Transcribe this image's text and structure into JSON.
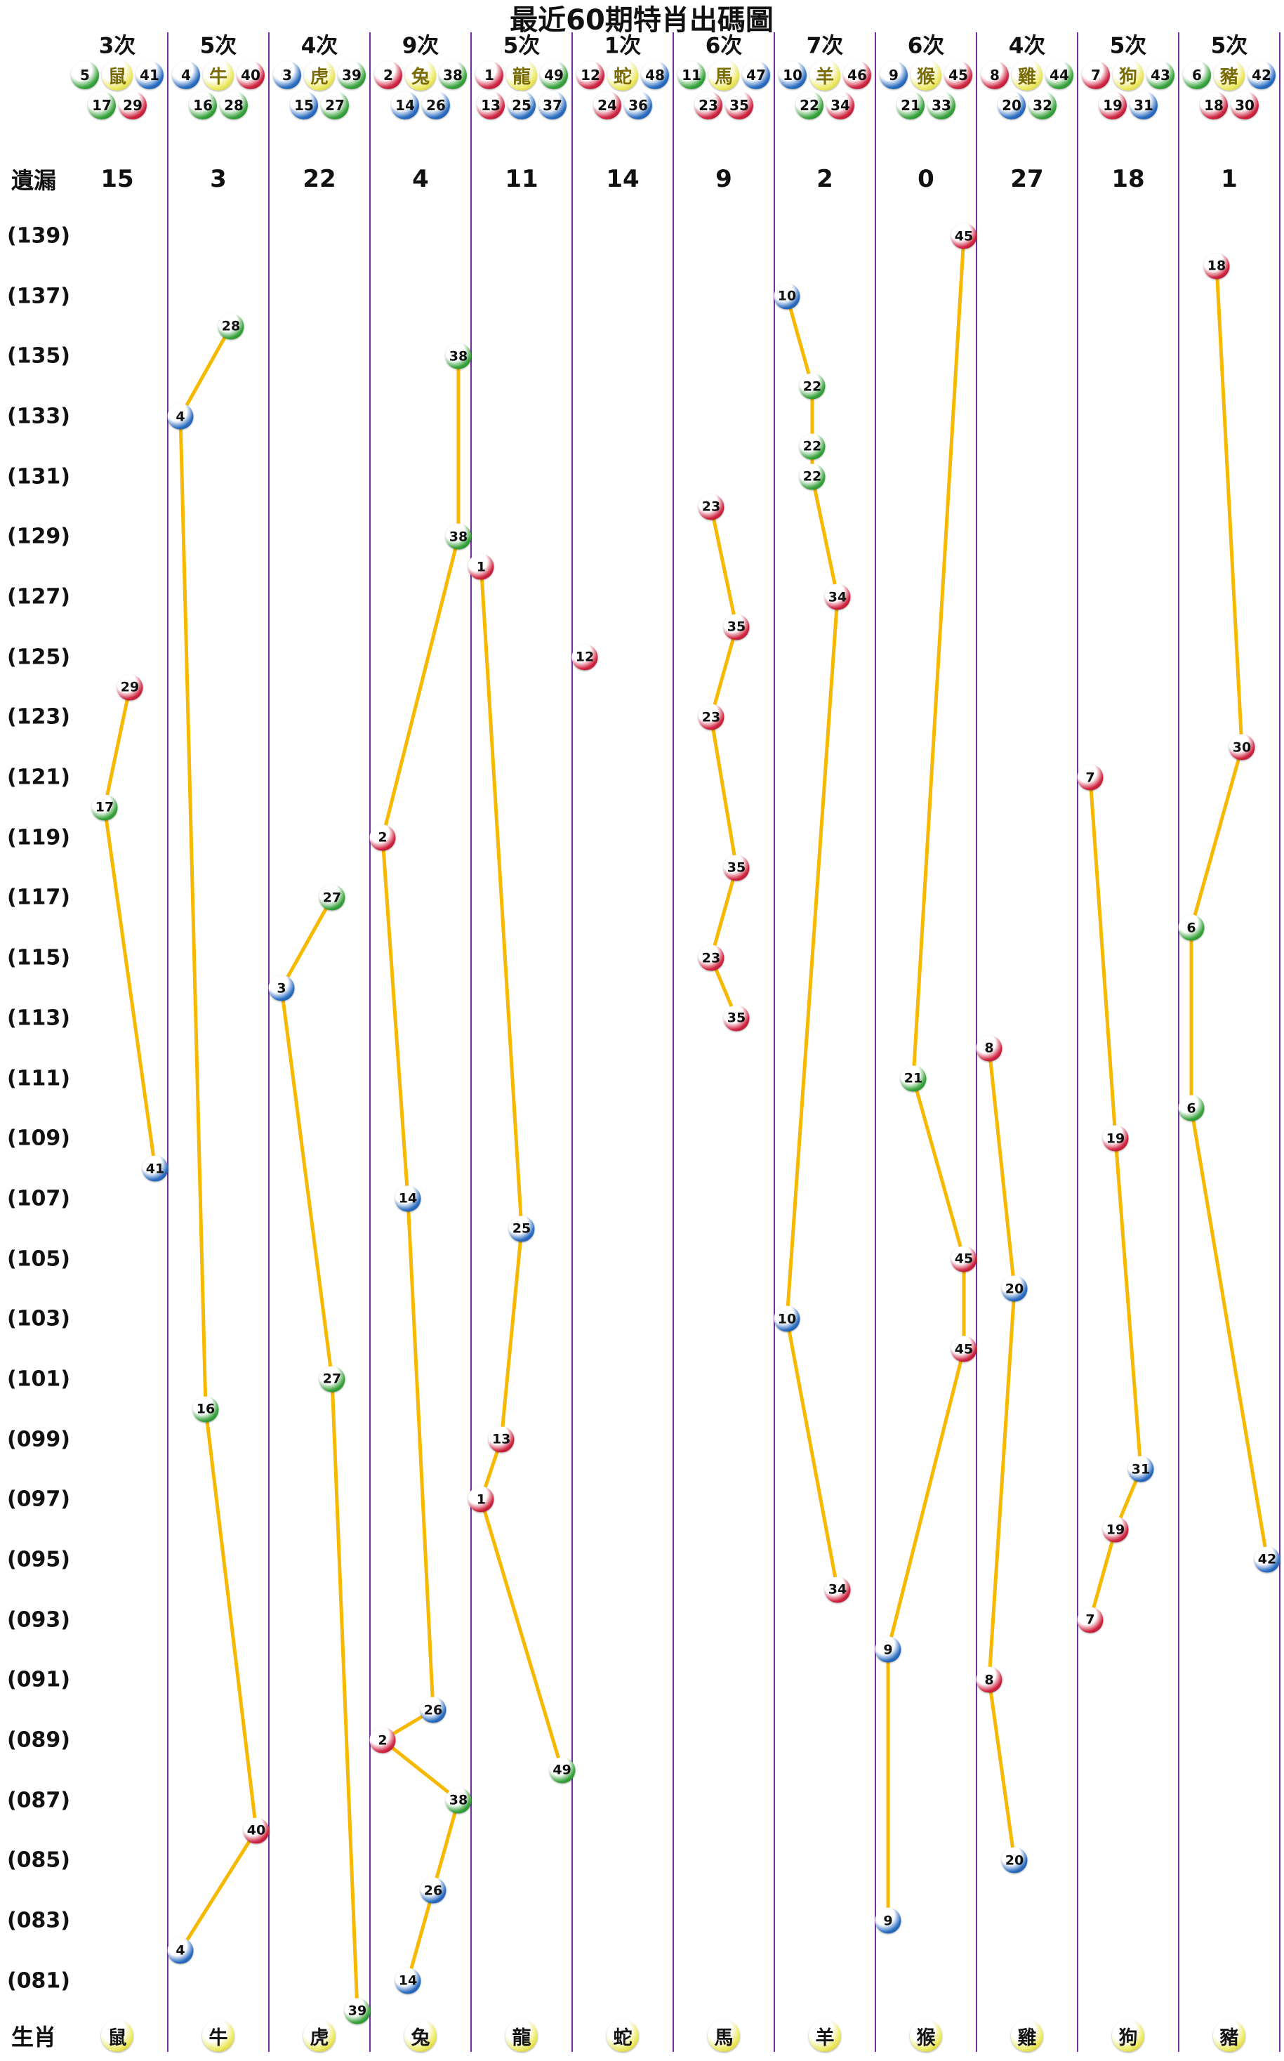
{
  "title": "最近60期特肖出碼圖",
  "labels": {
    "miss": "遺漏",
    "zodiac": "生肖"
  },
  "colors": {
    "line": "#f7b800",
    "divider": "#7030a0",
    "red": {
      "main": "#cf2440",
      "dark": "#8f0f26"
    },
    "blue": {
      "main": "#2a6cc0",
      "dark": "#15498f"
    },
    "green": {
      "main": "#37a23c",
      "dark": "#187a1e"
    },
    "yellow": {
      "main": "#ece85e",
      "dark": "#b8ae28"
    }
  },
  "chart_data": {
    "type": "scatter",
    "title": "最近60期特肖出碼圖",
    "y_axis_labels": [
      "(139)",
      "(137)",
      "(135)",
      "(133)",
      "(131)",
      "(129)",
      "(127)",
      "(125)",
      "(123)",
      "(121)",
      "(119)",
      "(117)",
      "(115)",
      "(113)",
      "(111)",
      "(109)",
      "(107)",
      "(105)",
      "(103)",
      "(101)",
      "(099)",
      "(097)",
      "(095)",
      "(093)",
      "(091)",
      "(089)",
      "(087)",
      "(085)",
      "(083)",
      "(081)"
    ],
    "y_axis_periods": [
      139,
      137,
      135,
      133,
      131,
      129,
      127,
      125,
      123,
      121,
      119,
      117,
      115,
      113,
      111,
      109,
      107,
      105,
      103,
      101,
      99,
      97,
      95,
      93,
      91,
      89,
      87,
      85,
      83,
      81
    ],
    "period_range": [
      80,
      139
    ],
    "ball_color_groups": {
      "red": [
        1,
        2,
        7,
        8,
        12,
        13,
        18,
        19,
        23,
        24,
        29,
        30,
        34,
        35,
        40,
        45,
        46
      ],
      "blue": [
        3,
        4,
        9,
        10,
        14,
        15,
        20,
        25,
        26,
        31,
        36,
        37,
        41,
        42,
        47,
        48
      ],
      "green": [
        5,
        6,
        11,
        16,
        17,
        21,
        22,
        27,
        28,
        32,
        33,
        38,
        39,
        43,
        44,
        49
      ]
    },
    "zodiac_columns": [
      {
        "name": "鼠",
        "times": "3次",
        "miss": "15",
        "numbers": [
          5,
          17,
          29,
          41
        ],
        "points": [
          {
            "period": 124,
            "num": 29
          },
          {
            "period": 120,
            "num": 17
          },
          {
            "period": 108,
            "num": 41
          }
        ]
      },
      {
        "name": "牛",
        "times": "5次",
        "miss": "3",
        "numbers": [
          4,
          16,
          28,
          40
        ],
        "points": [
          {
            "period": 136,
            "num": 28
          },
          {
            "period": 133,
            "num": 4
          },
          {
            "period": 100,
            "num": 16
          },
          {
            "period": 86,
            "num": 40
          },
          {
            "period": 82,
            "num": 4
          }
        ]
      },
      {
        "name": "虎",
        "times": "4次",
        "miss": "22",
        "numbers": [
          3,
          15,
          27,
          39
        ],
        "points": [
          {
            "period": 117,
            "num": 27
          },
          {
            "period": 114,
            "num": 3
          },
          {
            "period": 101,
            "num": 27
          },
          {
            "period": 80,
            "num": 39
          }
        ]
      },
      {
        "name": "兔",
        "times": "9次",
        "miss": "4",
        "numbers": [
          2,
          14,
          26,
          38
        ],
        "points": [
          {
            "period": 135,
            "num": 38
          },
          {
            "period": 129,
            "num": 38
          },
          {
            "period": 119,
            "num": 2
          },
          {
            "period": 107,
            "num": 14
          },
          {
            "period": 90,
            "num": 26
          },
          {
            "period": 89,
            "num": 2
          },
          {
            "period": 87,
            "num": 38
          },
          {
            "period": 84,
            "num": 26
          },
          {
            "period": 81,
            "num": 14
          }
        ]
      },
      {
        "name": "龍",
        "times": "5次",
        "miss": "11",
        "numbers": [
          1,
          13,
          25,
          37,
          49
        ],
        "points": [
          {
            "period": 128,
            "num": 1
          },
          {
            "period": 106,
            "num": 25
          },
          {
            "period": 99,
            "num": 13
          },
          {
            "period": 97,
            "num": 1
          },
          {
            "period": 88,
            "num": 49
          }
        ]
      },
      {
        "name": "蛇",
        "times": "1次",
        "miss": "14",
        "numbers": [
          12,
          24,
          36,
          48
        ],
        "points": [
          {
            "period": 125,
            "num": 12
          }
        ]
      },
      {
        "name": "馬",
        "times": "6次",
        "miss": "9",
        "numbers": [
          11,
          23,
          35,
          47
        ],
        "points": [
          {
            "period": 130,
            "num": 23
          },
          {
            "period": 126,
            "num": 35
          },
          {
            "period": 123,
            "num": 23
          },
          {
            "period": 118,
            "num": 35
          },
          {
            "period": 115,
            "num": 23
          },
          {
            "period": 113,
            "num": 35
          }
        ]
      },
      {
        "name": "羊",
        "times": "7次",
        "miss": "2",
        "numbers": [
          10,
          22,
          34,
          46
        ],
        "points": [
          {
            "period": 137,
            "num": 10
          },
          {
            "period": 134,
            "num": 22
          },
          {
            "period": 132,
            "num": 22
          },
          {
            "period": 131,
            "num": 22
          },
          {
            "period": 127,
            "num": 34
          },
          {
            "period": 103,
            "num": 10
          },
          {
            "period": 94,
            "num": 34
          }
        ]
      },
      {
        "name": "猴",
        "times": "6次",
        "miss": "0",
        "numbers": [
          9,
          21,
          33,
          45
        ],
        "points": [
          {
            "period": 139,
            "num": 45
          },
          {
            "period": 111,
            "num": 21
          },
          {
            "period": 105,
            "num": 45
          },
          {
            "period": 102,
            "num": 45
          },
          {
            "period": 92,
            "num": 9
          },
          {
            "period": 83,
            "num": 9
          }
        ]
      },
      {
        "name": "雞",
        "times": "4次",
        "miss": "27",
        "numbers": [
          8,
          20,
          32,
          44
        ],
        "points": [
          {
            "period": 112,
            "num": 8
          },
          {
            "period": 104,
            "num": 20
          },
          {
            "period": 91,
            "num": 8
          },
          {
            "period": 85,
            "num": 20
          }
        ]
      },
      {
        "name": "狗",
        "times": "5次",
        "miss": "18",
        "numbers": [
          7,
          19,
          31,
          43
        ],
        "points": [
          {
            "period": 121,
            "num": 7
          },
          {
            "period": 109,
            "num": 19
          },
          {
            "period": 98,
            "num": 31
          },
          {
            "period": 96,
            "num": 19
          },
          {
            "period": 93,
            "num": 7
          }
        ]
      },
      {
        "name": "豬",
        "times": "5次",
        "miss": "1",
        "numbers": [
          6,
          18,
          30,
          42
        ],
        "points": [
          {
            "period": 138,
            "num": 18
          },
          {
            "period": 122,
            "num": 30
          },
          {
            "period": 116,
            "num": 6
          },
          {
            "period": 110,
            "num": 6
          },
          {
            "period": 95,
            "num": 42
          }
        ]
      }
    ]
  }
}
